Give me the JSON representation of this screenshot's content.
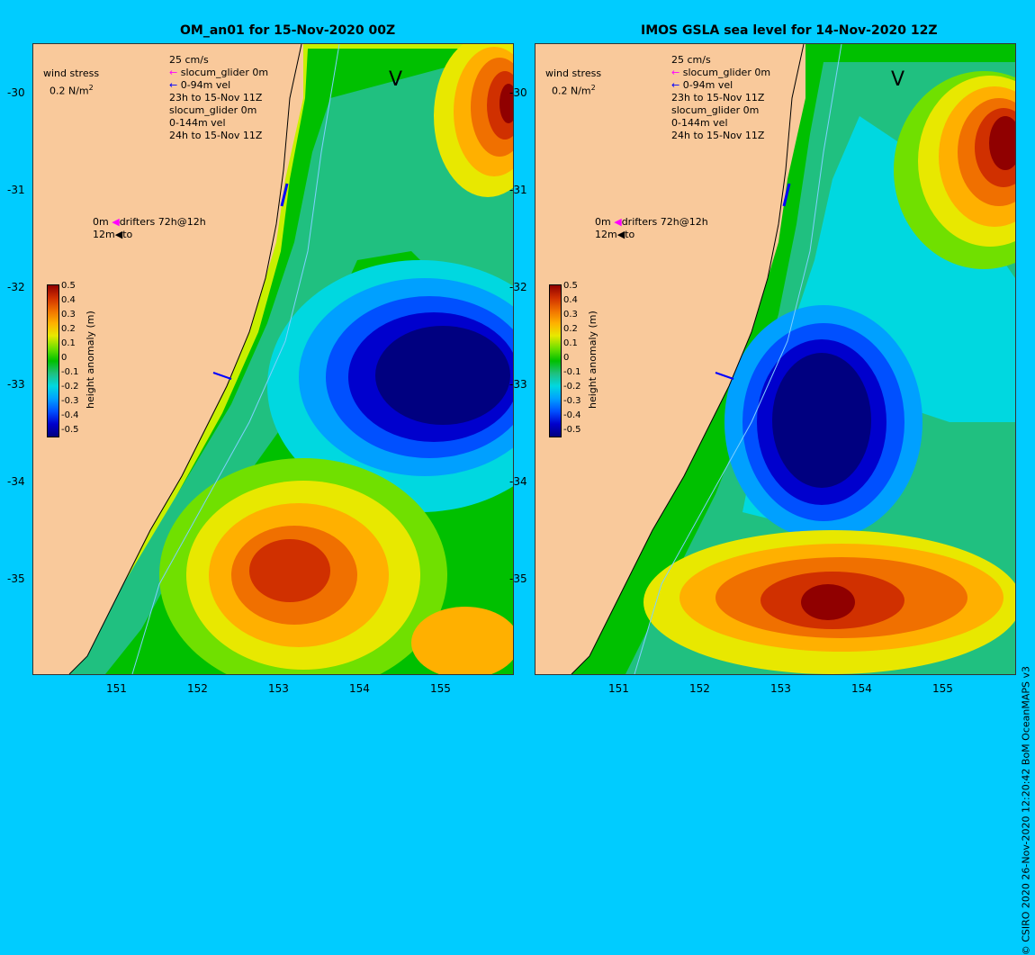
{
  "left_panel": {
    "title": "OM_an01 for 15-Nov-2020 00Z",
    "yticks": [
      "-30",
      "-31",
      "-32",
      "-33",
      "-34",
      "-35"
    ],
    "xticks": [
      "151",
      "152",
      "153",
      "154",
      "155"
    ]
  },
  "right_panel": {
    "title": "IMOS GSLA sea level  for 14-Nov-2020 12Z",
    "yticks": [
      "-30",
      "-31",
      "-32",
      "-33",
      "-34",
      "-35"
    ],
    "xticks": [
      "151",
      "152",
      "153",
      "154",
      "155"
    ]
  },
  "legend": {
    "wind_stress": "wind stress",
    "wind_value": "0.2 N/m",
    "wind_unit_sup": "2",
    "current_scale": "25 cm/s",
    "glider0": "slocum_glider 0m",
    "glider0_vel": "0-94m vel",
    "glider0_time": "23h to 15-Nov 11Z",
    "glider1": "slocum_glider 0m",
    "glider1_vel": "0-144m vel",
    "glider1_time": "24h to 15-Nov 11Z",
    "drifter_0m": "0m",
    "drifters": "drifters 72h@12h",
    "drifter_12m": "12m",
    "drifter_to": "to",
    "v_mark": "V"
  },
  "colorbar": {
    "label": "height anomaly (m)",
    "ticks": [
      "0.5",
      "0.4",
      "0.3",
      "0.2",
      "0.1",
      "0",
      "-0.1",
      "-0.2",
      "-0.3",
      "-0.4",
      "-0.5"
    ],
    "colors": [
      "#000080",
      "#0000cd",
      "#0050ff",
      "#00a0ff",
      "#00d8e0",
      "#20c080",
      "#00c000",
      "#70e000",
      "#e8e800",
      "#ffb000",
      "#f07000",
      "#d03000",
      "#900000"
    ]
  },
  "credit": "© CSIRO 2020   26-Nov-2020 12:20:42 BoM OceanMAPS v3"
}
